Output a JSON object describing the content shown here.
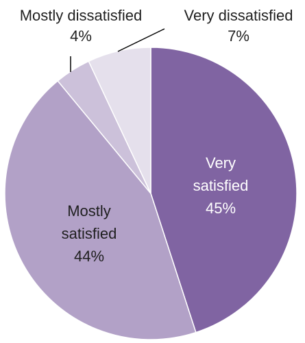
{
  "chart_data": {
    "type": "pie",
    "title": "",
    "start_angle_deg": 0,
    "direction": "clockwise",
    "slices": [
      {
        "label_lines": [
          "Very",
          "satisfied"
        ],
        "percent_label": "45%",
        "value": 45,
        "color": "#8064a2",
        "label_color": "#ffffff",
        "label_position": "inside"
      },
      {
        "label_lines": [
          "Mostly",
          "satisfied"
        ],
        "percent_label": "44%",
        "value": 44,
        "color": "#b2a1c7",
        "label_color": "#1f1f1f",
        "label_position": "inside"
      },
      {
        "label_lines": [
          "Mostly dissatisfied"
        ],
        "percent_label": "4%",
        "value": 4,
        "color": "#ccc1da",
        "label_color": "#1f1f1f",
        "label_position": "outside-left"
      },
      {
        "label_lines": [
          "Very dissatisfied"
        ],
        "percent_label": "7%",
        "value": 7,
        "color": "#e5e0ec",
        "label_color": "#1f1f1f",
        "label_position": "outside-right"
      }
    ]
  }
}
